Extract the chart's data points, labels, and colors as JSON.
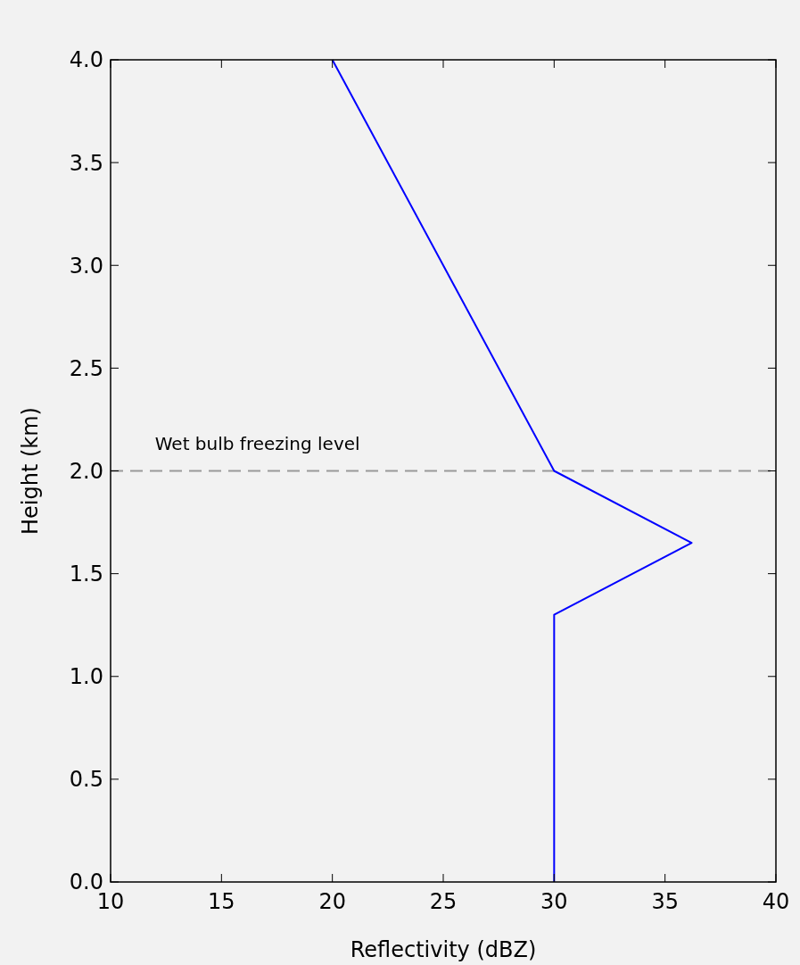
{
  "chart_data": {
    "type": "line",
    "xlabel": "Reflectivity (dBZ)",
    "ylabel": "Height (km)",
    "x": [
      20,
      25,
      30,
      36.2,
      30,
      30
    ],
    "series": [
      {
        "color": "#0000ff",
        "values": [
          4.0,
          3.0,
          2.0,
          1.65,
          1.3,
          0.0
        ]
      }
    ],
    "xlim": [
      10,
      40
    ],
    "xticks": [
      10,
      15,
      20,
      25,
      30,
      35,
      40
    ],
    "ylim": [
      0,
      4
    ],
    "yticks": [
      {
        "value": 0,
        "label": "0.0"
      },
      {
        "value": 0.5,
        "label": "0.5"
      },
      {
        "value": 1,
        "label": "1.0"
      },
      {
        "value": 1.5,
        "label": "1.5"
      },
      {
        "value": 2,
        "label": "2.0"
      },
      {
        "value": 2.5,
        "label": "2.5"
      },
      {
        "value": 3,
        "label": "3.0"
      },
      {
        "value": 3.5,
        "label": "3.5"
      },
      {
        "value": 4,
        "label": "4.0"
      }
    ],
    "ref_lines": [
      {
        "axis": "y",
        "value": 2.0,
        "label": "Wet bulb freezing level",
        "color": "#999999",
        "line_style": "dashed"
      }
    ],
    "grid": false,
    "marker": "none",
    "line_style": "solid"
  }
}
